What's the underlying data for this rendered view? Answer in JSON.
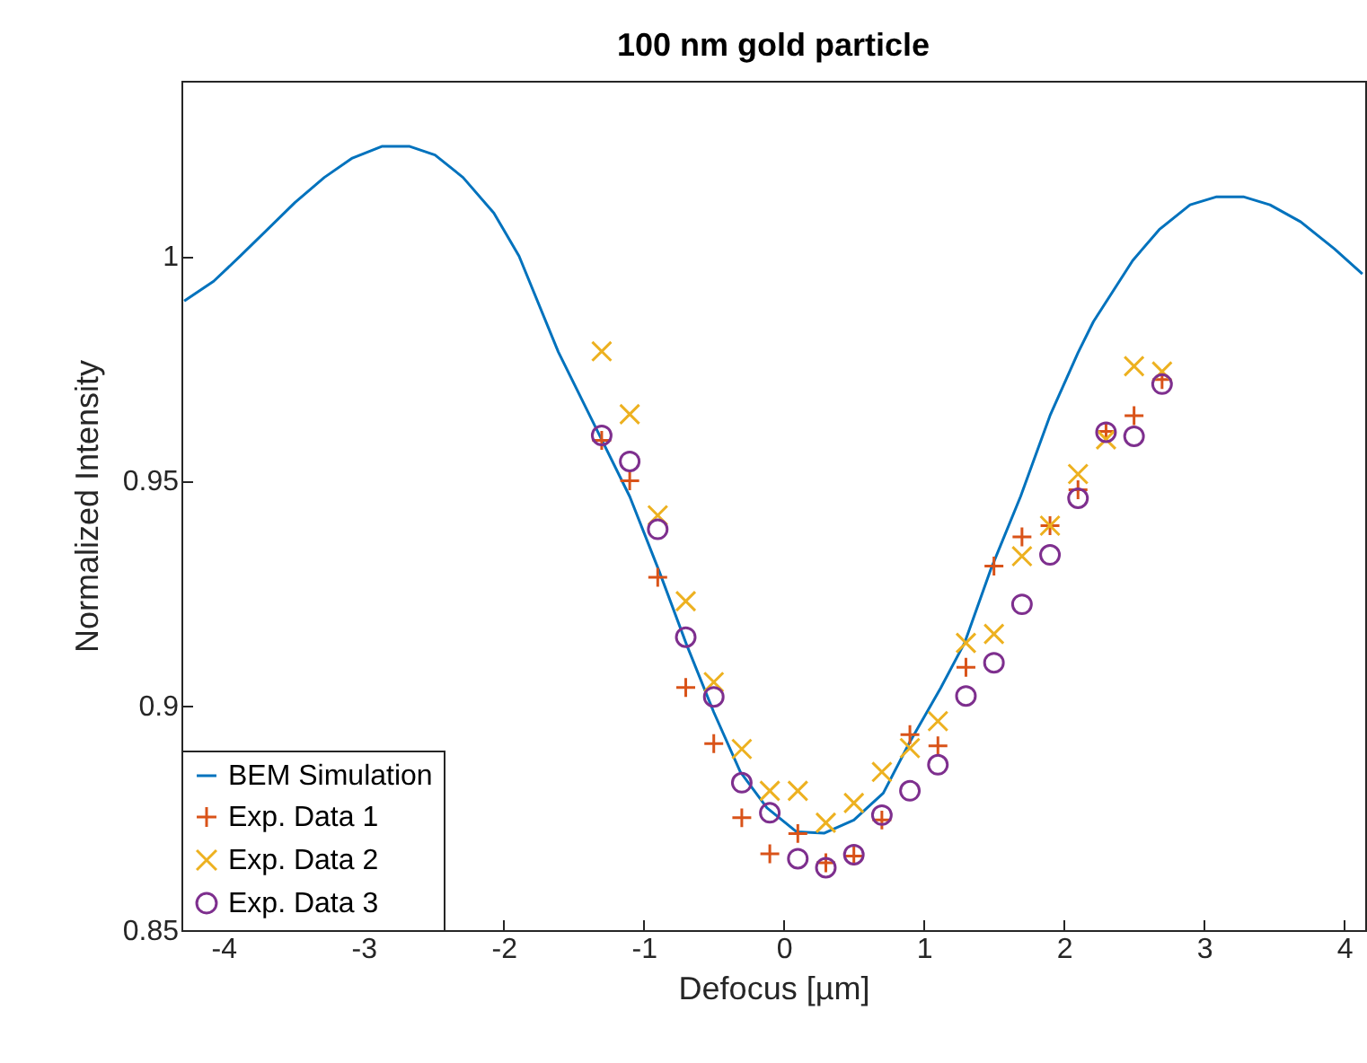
{
  "chart_data": {
    "type": "scatter",
    "title": "100 nm gold particle",
    "xlabel": "Defocus [µm]",
    "ylabel": "Normalized Intensity",
    "xlim": [
      -4.3,
      4.15
    ],
    "xticks": [
      -4,
      -3,
      -2,
      -1,
      0,
      1,
      2,
      3,
      4
    ],
    "ylim": [
      0.85,
      1.039
    ],
    "yticks": [
      0.85,
      0.9,
      0.95,
      1
    ],
    "grid": false,
    "legend": "bottom left",
    "series": [
      {
        "name": "BEM Simulation",
        "type": "line",
        "marker": "none",
        "color": "#0072bd",
        "x": [
          -4.28,
          -4.07,
          -3.88,
          -3.49,
          -3.28,
          -3.08,
          -2.87,
          -2.67,
          -2.49,
          -2.29,
          -2.07,
          -1.89,
          -1.61,
          -1.29,
          -1.1,
          -0.89,
          -0.69,
          -0.5,
          -0.31,
          -0.12,
          0.09,
          0.29,
          0.5,
          0.71,
          0.9,
          1.12,
          1.29,
          1.48,
          1.69,
          1.9,
          2.1,
          2.21,
          2.49,
          2.68,
          2.9,
          3.09,
          3.28,
          3.47,
          3.69,
          3.93,
          4.13
        ],
        "values": [
          0.99,
          0.9944,
          1.0,
          1.0119,
          1.0175,
          1.0218,
          1.0244,
          1.0244,
          1.0225,
          1.0175,
          1.0096,
          1.0,
          0.9787,
          0.9585,
          0.9465,
          0.9299,
          0.9132,
          0.8985,
          0.8852,
          0.8772,
          0.8719,
          0.8716,
          0.8745,
          0.8805,
          0.8919,
          0.9039,
          0.9139,
          0.9305,
          0.9465,
          0.9645,
          0.9785,
          0.9854,
          0.999,
          1.0059,
          1.0114,
          1.0132,
          1.0132,
          1.0114,
          1.0076,
          1.0016,
          0.996
        ]
      },
      {
        "name": "Exp. Data 1",
        "marker": "plus",
        "color": "#d95319",
        "x": [
          -1.3,
          -1.1,
          -0.9,
          -0.7,
          -0.5,
          -0.3,
          -0.1,
          0.1,
          0.3,
          0.5,
          0.7,
          0.9,
          1.1,
          1.3,
          1.5,
          1.7,
          1.9,
          2.1,
          2.3,
          2.5,
          2.7
        ],
        "values": [
          0.959,
          0.95,
          0.9285,
          0.904,
          0.8915,
          0.875,
          0.867,
          0.8715,
          0.865,
          0.8665,
          0.8745,
          0.8935,
          0.891,
          0.9085,
          0.931,
          0.9375,
          0.94,
          0.948,
          0.961,
          0.9645,
          0.9725
        ]
      },
      {
        "name": "Exp. Data 2",
        "marker": "cross",
        "color": "#edb120",
        "x": [
          -1.3,
          -1.1,
          -0.9,
          -0.7,
          -0.5,
          -0.3,
          -0.1,
          0.1,
          0.3,
          0.5,
          0.7,
          0.9,
          1.1,
          1.3,
          1.5,
          1.7,
          1.9,
          2.1,
          2.3,
          2.5,
          2.7
        ],
        "values": [
          0.9788,
          0.9648,
          0.9423,
          0.9232,
          0.9052,
          0.8903,
          0.881,
          0.881,
          0.8739,
          0.8783,
          0.8852,
          0.8905,
          0.8965,
          0.9139,
          0.9159,
          0.9332,
          0.94,
          0.9515,
          0.9592,
          0.9755,
          0.9743
        ]
      },
      {
        "name": "Exp. Data 3",
        "marker": "circle",
        "color": "#7e2f8e",
        "x": [
          -1.3,
          -1.1,
          -0.9,
          -0.7,
          -0.5,
          -0.3,
          -0.1,
          0.1,
          0.3,
          0.5,
          0.7,
          0.9,
          1.1,
          1.3,
          1.5,
          1.7,
          1.9,
          2.1,
          2.3,
          2.5,
          2.7
        ],
        "values": [
          0.9601,
          0.9543,
          0.9392,
          0.9152,
          0.9019,
          0.8828,
          0.8761,
          0.8659,
          0.8639,
          0.8668,
          0.8756,
          0.881,
          0.8868,
          0.9021,
          0.9095,
          0.9225,
          0.9335,
          0.9461,
          0.9608,
          0.9599,
          0.9715
        ]
      }
    ]
  }
}
